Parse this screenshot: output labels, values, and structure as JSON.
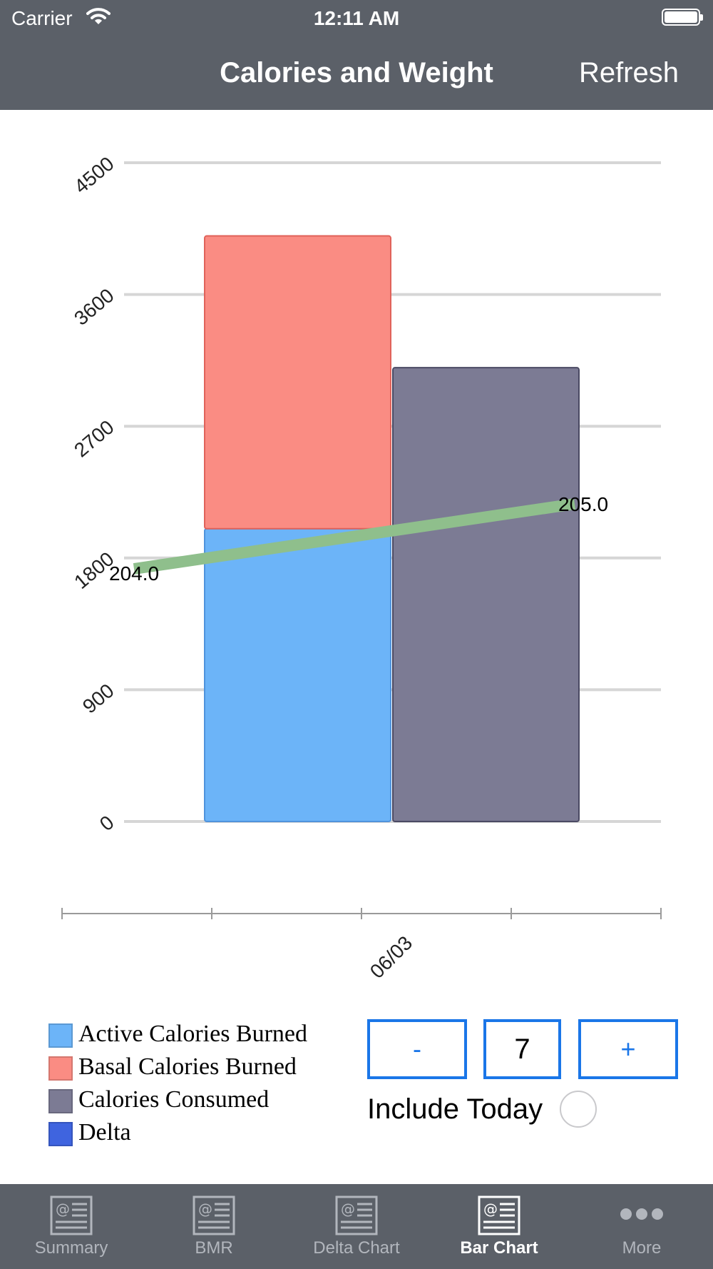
{
  "status_bar": {
    "carrier": "Carrier",
    "time": "12:11 AM"
  },
  "nav": {
    "title": "Calories and Weight",
    "refresh_label": "Refresh"
  },
  "chart_data": {
    "type": "bar",
    "y_ticks": [
      "0",
      "900",
      "1800",
      "2700",
      "3600",
      "4500"
    ],
    "ylim": [
      0,
      4500
    ],
    "grid": true,
    "categories": [
      "06/03"
    ],
    "bars": [
      {
        "segments": [
          {
            "series": "Active Calories Burned",
            "value": 2000,
            "color": "#6cb4f8"
          },
          {
            "series": "Basal Calories Burned",
            "value": 2000,
            "color": "#fa8c83"
          }
        ]
      },
      {
        "segments": [
          {
            "series": "Calories Consumed",
            "value": 3100,
            "color": "#7c7b94"
          }
        ]
      }
    ],
    "weight_line": {
      "color": "#8fbf8c",
      "points": [
        {
          "label": "204.0",
          "value": 204.0
        },
        {
          "label": "205.0",
          "value": 205.0
        }
      ]
    }
  },
  "legend": {
    "items": [
      {
        "label": "Active Calories Burned",
        "color": "#6cb4f8"
      },
      {
        "label": "Basal Calories Burned",
        "color": "#fa8c83"
      },
      {
        "label": "Calories Consumed",
        "color": "#7c7b94"
      },
      {
        "label": "Delta",
        "color": "#3f64df"
      }
    ]
  },
  "controls": {
    "minus_label": "-",
    "plus_label": "+",
    "days_value": "7",
    "include_today_label": "Include Today"
  },
  "tabs": [
    {
      "label": "Summary",
      "icon": "newspaper-icon",
      "active": false
    },
    {
      "label": "BMR",
      "icon": "newspaper-icon",
      "active": false
    },
    {
      "label": "Delta Chart",
      "icon": "newspaper-icon",
      "active": false
    },
    {
      "label": "Bar Chart",
      "icon": "newspaper-icon",
      "active": true
    },
    {
      "label": "More",
      "icon": "more-dots-icon",
      "active": false
    }
  ]
}
